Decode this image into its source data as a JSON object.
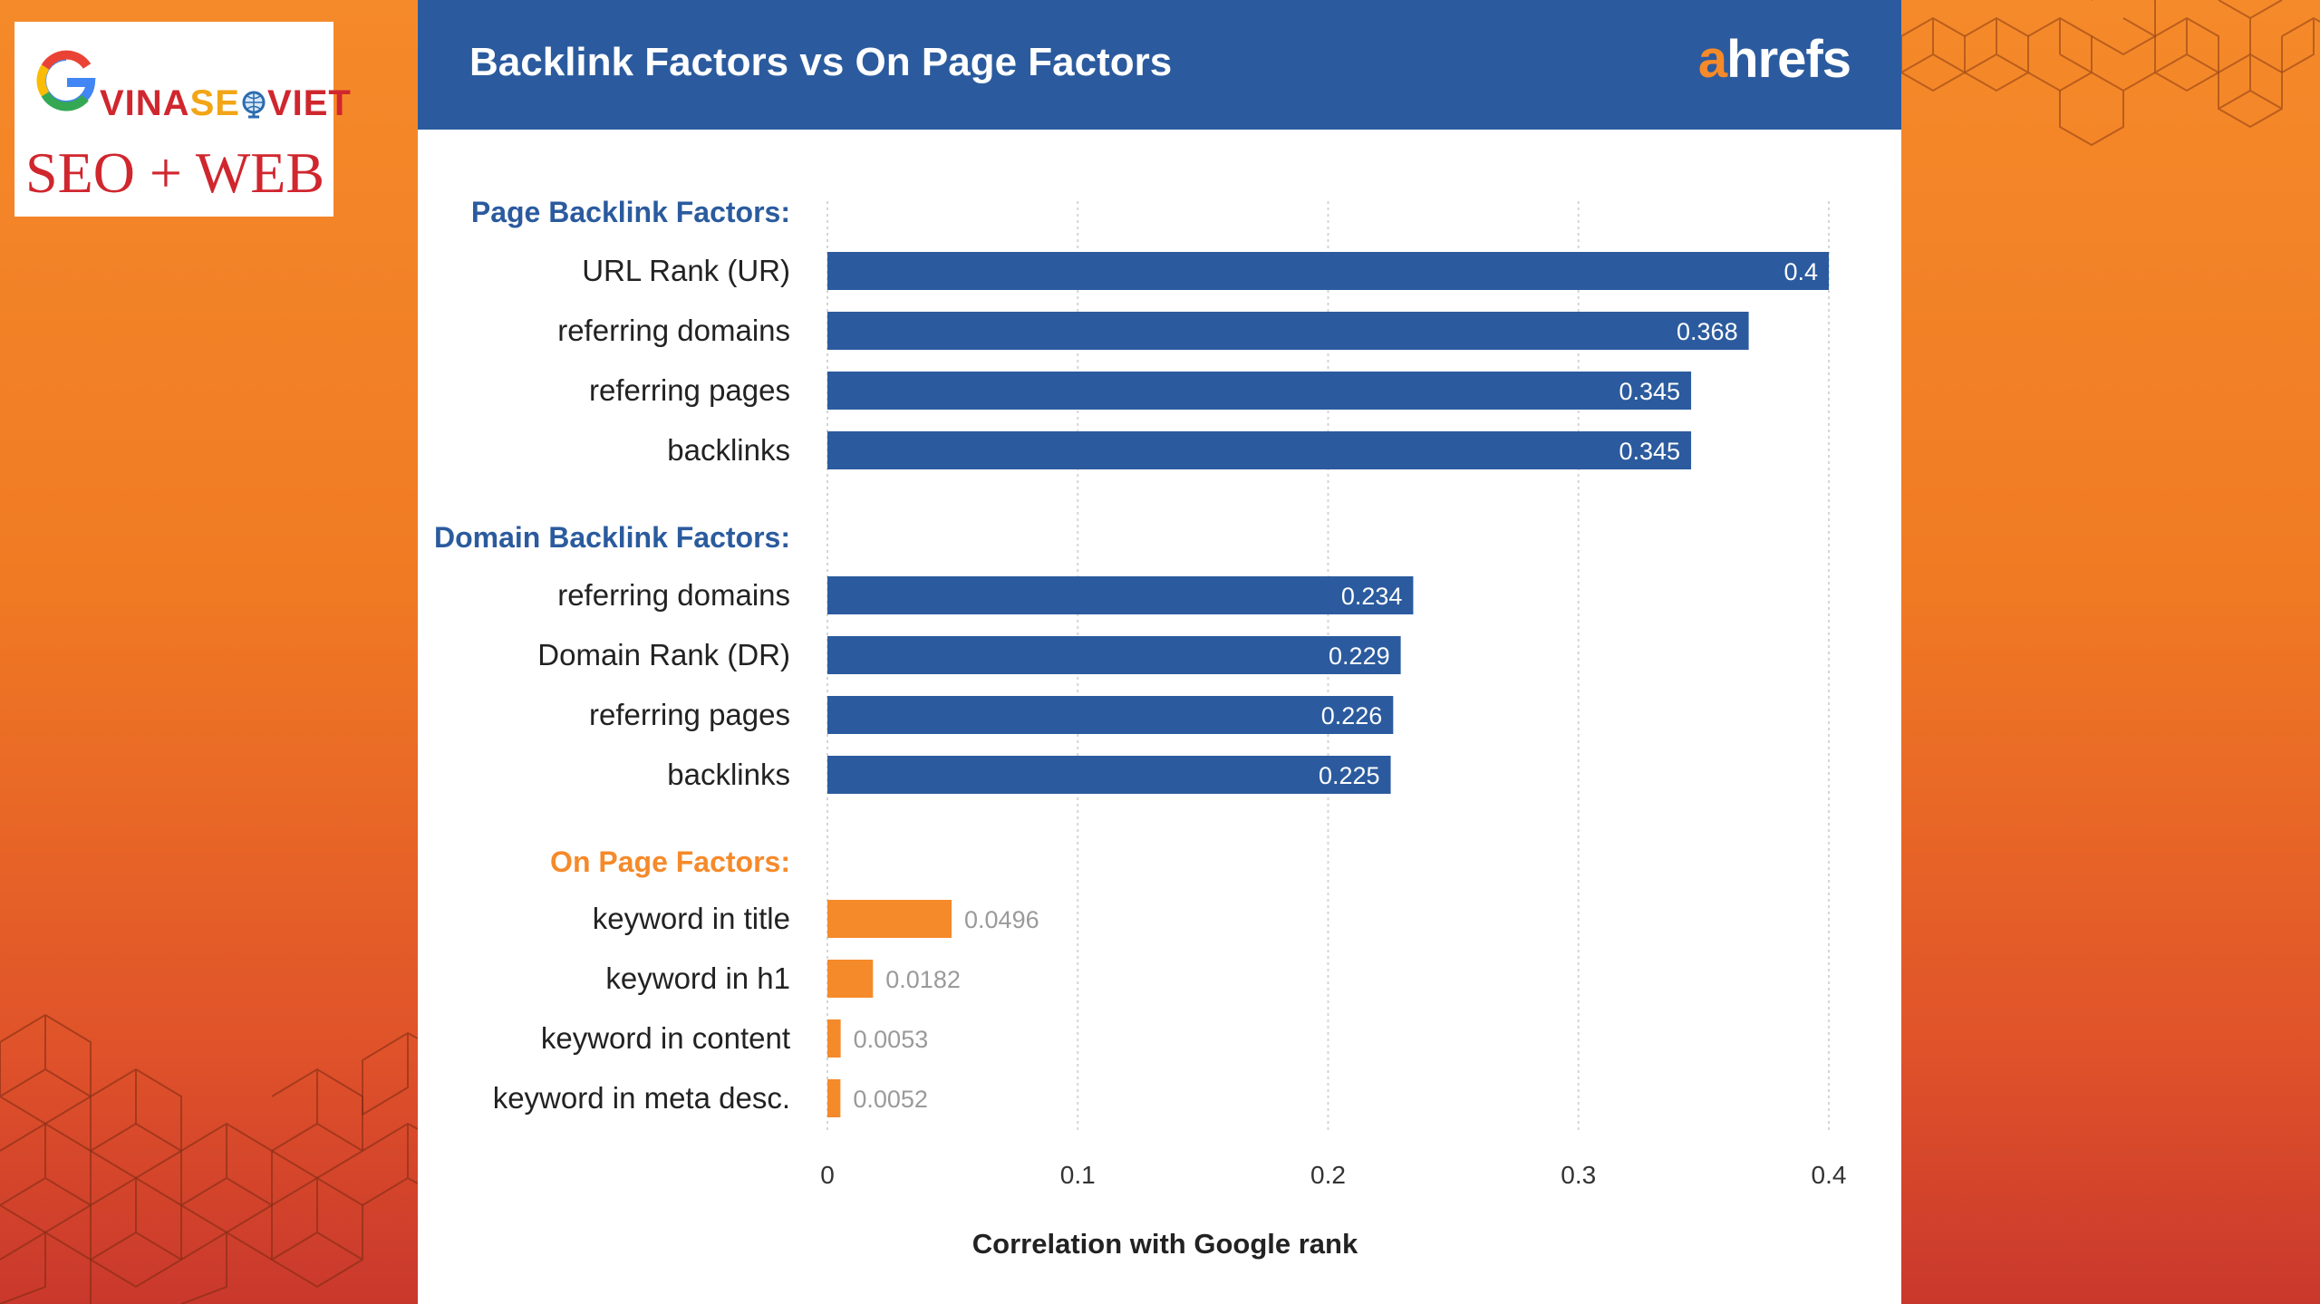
{
  "logo": {
    "brand_vina": "VINA",
    "brand_seo": "SE",
    "brand_viet": "VIET",
    "tagline": "SEO + WEB",
    "icon": "google-g-icon"
  },
  "header": {
    "title": "Backlink Factors vs On Page Factors",
    "brand_a": "a",
    "brand_rest": "hrefs"
  },
  "colors": {
    "background_top": "#f58a2a",
    "background_bottom": "#c9382c",
    "header_blue": "#2b5b9e",
    "bar_blue": "#2b5b9e",
    "bar_orange": "#f58a2a",
    "group_blue": "#2b5b9e",
    "group_orange": "#f58a2a",
    "value_gray": "#9a9a9a"
  },
  "chart_data": {
    "type": "bar",
    "orientation": "horizontal",
    "xlabel": "Correlation with Google rank",
    "xlim": [
      0,
      0.4
    ],
    "xticks": [
      "0",
      "0.1",
      "0.2",
      "0.3",
      "0.4"
    ],
    "grid": "vertical dotted",
    "groups": [
      {
        "name": "Page Backlink Factors:",
        "color": "#2b5b9e",
        "items": [
          {
            "label": "URL Rank (UR)",
            "value": 0.4,
            "value_label": "0.4"
          },
          {
            "label": "referring domains",
            "value": 0.368,
            "value_label": "0.368"
          },
          {
            "label": "referring pages",
            "value": 0.345,
            "value_label": "0.345"
          },
          {
            "label": "backlinks",
            "value": 0.345,
            "value_label": "0.345"
          }
        ]
      },
      {
        "name": "Domain Backlink Factors:",
        "color": "#2b5b9e",
        "items": [
          {
            "label": "referring domains",
            "value": 0.234,
            "value_label": "0.234"
          },
          {
            "label": "Domain Rank (DR)",
            "value": 0.229,
            "value_label": "0.229"
          },
          {
            "label": "referring pages",
            "value": 0.226,
            "value_label": "0.226"
          },
          {
            "label": "backlinks",
            "value": 0.225,
            "value_label": "0.225"
          }
        ]
      },
      {
        "name": "On Page Factors:",
        "color": "#f58a2a",
        "items": [
          {
            "label": "keyword in title",
            "value": 0.0496,
            "value_label": "0.0496"
          },
          {
            "label": "keyword in h1",
            "value": 0.0182,
            "value_label": "0.0182"
          },
          {
            "label": "keyword in content",
            "value": 0.0053,
            "value_label": "0.0053"
          },
          {
            "label": "keyword in meta desc.",
            "value": 0.0052,
            "value_label": "0.0052"
          }
        ]
      }
    ]
  }
}
